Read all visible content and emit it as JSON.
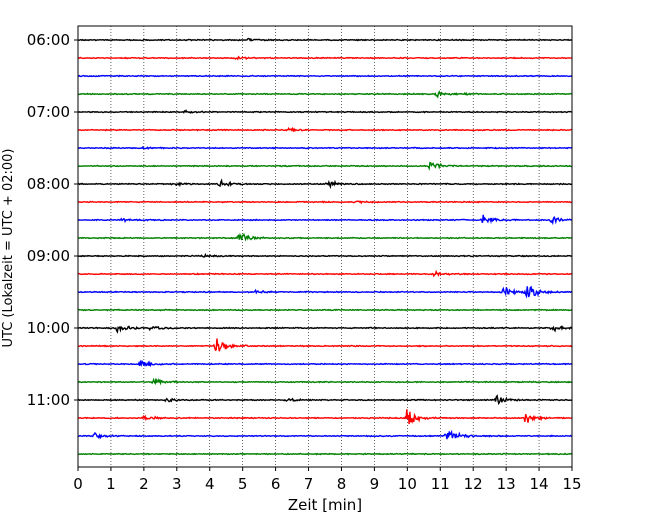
{
  "chart_data": {
    "type": "line",
    "title": "",
    "xlabel": "Zeit  [min]",
    "ylabel": "UTC (Lokalzeit = UTC + 02:00)",
    "xlim": [
      0,
      15
    ],
    "x_ticks": [
      "0",
      "1",
      "2",
      "3",
      "4",
      "5",
      "6",
      "7",
      "8",
      "9",
      "10",
      "11",
      "12",
      "13",
      "14",
      "15"
    ],
    "y_tick_labels": [
      "06:00",
      "07:00",
      "08:00",
      "09:00",
      "10:00",
      "11:00"
    ],
    "grid": "vertical dotted lines at each minute",
    "trace_colors": [
      "#000000",
      "#ff0000",
      "#0000ff",
      "#008000"
    ],
    "traces": [
      {
        "start": "06:00",
        "events": [
          {
            "t": 5.2,
            "amp": 0.35
          }
        ]
      },
      {
        "start": "06:15",
        "events": [
          {
            "t": 4.8,
            "amp": 0.3
          }
        ]
      },
      {
        "start": "06:30",
        "events": []
      },
      {
        "start": "06:45",
        "events": [
          {
            "t": 10.9,
            "amp": 0.6
          },
          {
            "t": 11.7,
            "amp": 0.3
          }
        ]
      },
      {
        "start": "07:00",
        "events": [
          {
            "t": 3.2,
            "amp": 0.3
          }
        ]
      },
      {
        "start": "07:15",
        "events": [
          {
            "t": 6.4,
            "amp": 0.3
          }
        ]
      },
      {
        "start": "07:30",
        "events": [
          {
            "t": 2.0,
            "amp": 0.25
          }
        ]
      },
      {
        "start": "07:45",
        "events": [
          {
            "t": 10.7,
            "amp": 1.2
          }
        ]
      },
      {
        "start": "08:00",
        "events": [
          {
            "t": 2.9,
            "amp": 0.35
          },
          {
            "t": 4.3,
            "amp": 0.9
          },
          {
            "t": 7.6,
            "amp": 0.9
          }
        ]
      },
      {
        "start": "08:15",
        "events": [
          {
            "t": 8.4,
            "amp": 0.3
          }
        ]
      },
      {
        "start": "08:30",
        "events": [
          {
            "t": 1.3,
            "amp": 0.4
          },
          {
            "t": 12.3,
            "amp": 1.3
          },
          {
            "t": 14.4,
            "amp": 0.8
          }
        ]
      },
      {
        "start": "08:45",
        "events": [
          {
            "t": 4.9,
            "amp": 1.5
          }
        ]
      },
      {
        "start": "09:00",
        "events": [
          {
            "t": 3.8,
            "amp": 0.35
          }
        ]
      },
      {
        "start": "09:15",
        "events": [
          {
            "t": 10.8,
            "amp": 0.5
          }
        ]
      },
      {
        "start": "09:30",
        "events": [
          {
            "t": 5.4,
            "amp": 0.4
          },
          {
            "t": 12.9,
            "amp": 1.3
          },
          {
            "t": 13.6,
            "amp": 2.4
          }
        ]
      },
      {
        "start": "09:45",
        "events": []
      },
      {
        "start": "10:00",
        "events": [
          {
            "t": 1.2,
            "amp": 1.0
          },
          {
            "t": 2.2,
            "amp": 0.5
          },
          {
            "t": 14.4,
            "amp": 0.7
          }
        ]
      },
      {
        "start": "10:15",
        "events": [
          {
            "t": 4.2,
            "amp": 2.4
          }
        ]
      },
      {
        "start": "10:30",
        "events": [
          {
            "t": 1.9,
            "amp": 1.0
          }
        ]
      },
      {
        "start": "10:45",
        "events": [
          {
            "t": 2.3,
            "amp": 1.0
          }
        ]
      },
      {
        "start": "11:00",
        "events": [
          {
            "t": 2.7,
            "amp": 0.4
          },
          {
            "t": 6.3,
            "amp": 0.35
          },
          {
            "t": 12.7,
            "amp": 1.0
          }
        ]
      },
      {
        "start": "11:15",
        "events": [
          {
            "t": 2.0,
            "amp": 0.6
          },
          {
            "t": 10.0,
            "amp": 2.2
          },
          {
            "t": 13.6,
            "amp": 1.3
          }
        ]
      },
      {
        "start": "11:30",
        "events": [
          {
            "t": 0.5,
            "amp": 0.8
          },
          {
            "t": 11.2,
            "amp": 1.8
          }
        ]
      },
      {
        "start": "11:45",
        "events": []
      }
    ]
  }
}
